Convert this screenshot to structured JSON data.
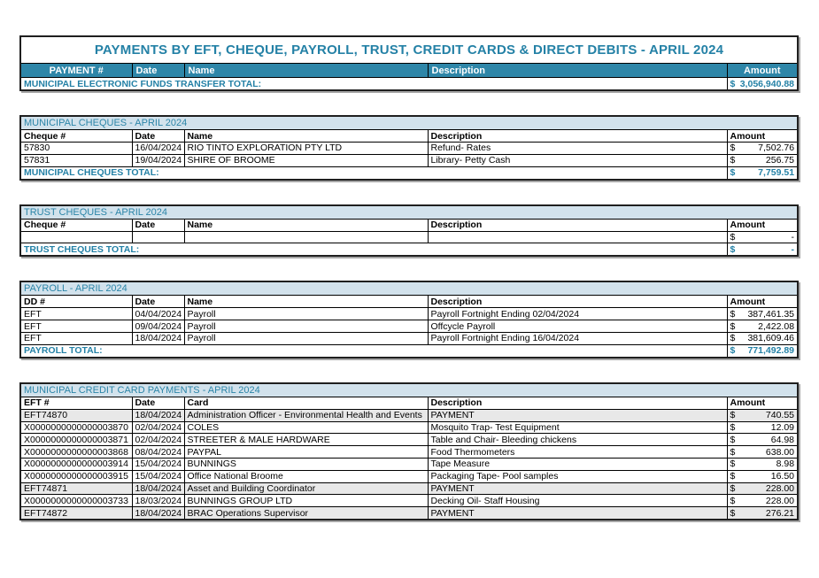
{
  "page_title": "PAYMENTS BY EFT, CHEQUE, PAYROLL, TRUST, CREDIT CARDS & DIRECT DEBITS - APRIL 2024",
  "currency_symbol": "$",
  "colors": {
    "header_teal": "#2E86A8",
    "teal_text": "#2481A6",
    "section_header_bg": "#D2E2EC",
    "highlight_row_bg": "#E8E8E8"
  },
  "summary": {
    "columns": [
      "PAYMENT #",
      "Date",
      "Name",
      "Description",
      "Amount"
    ],
    "total_label": "MUNICIPAL ELECTRONIC FUNDS TRANSFER TOTAL:",
    "total_amount": "3,056,940.88"
  },
  "sections": [
    {
      "title": "MUNICIPAL CHEQUES - APRIL 2024",
      "columns": [
        "Cheque #",
        "Date",
        "Name",
        "Description",
        "Amount"
      ],
      "rows": [
        {
          "id": "57830",
          "date": "16/04/2024",
          "name": "RIO TINTO EXPLORATION PTY LTD",
          "description": "Refund- Rates",
          "amount": "7,502.76",
          "highlight": false
        },
        {
          "id": "57831",
          "date": "19/04/2024",
          "name": "SHIRE OF BROOME",
          "description": "Library- Petty Cash",
          "amount": "256.75",
          "highlight": false
        }
      ],
      "total_label": "MUNICIPAL CHEQUES TOTAL:",
      "total_amount": "7,759.51"
    },
    {
      "title": "TRUST CHEQUES - APRIL 2024",
      "columns": [
        "Cheque #",
        "Date",
        "Name",
        "Description",
        "Amount"
      ],
      "rows": [
        {
          "id": "",
          "date": "",
          "name": "",
          "description": "",
          "amount": "-",
          "highlight": false
        }
      ],
      "total_label": "TRUST CHEQUES TOTAL:",
      "total_amount": "-"
    },
    {
      "title": "PAYROLL - APRIL 2024",
      "columns": [
        "DD #",
        "Date",
        "Name",
        "Description",
        "Amount"
      ],
      "rows": [
        {
          "id": "EFT",
          "date": "04/04/2024",
          "name": "Payroll",
          "description": "Payroll Fortnight Ending 02/04/2024",
          "amount": "387,461.35",
          "highlight": false
        },
        {
          "id": "EFT",
          "date": "09/04/2024",
          "name": "Payroll",
          "description": "Offcycle Payroll",
          "amount": "2,422.08",
          "highlight": false
        },
        {
          "id": "EFT",
          "date": "18/04/2024",
          "name": "Payroll",
          "description": "Payroll Fortnight Ending 16/04/2024",
          "amount": "381,609.46",
          "highlight": false
        }
      ],
      "total_label": "PAYROLL TOTAL:",
      "total_amount": "771,492.89"
    },
    {
      "title": "MUNICIPAL CREDIT CARD PAYMENTS - APRIL 2024",
      "columns": [
        "EFT #",
        "Date",
        "Card",
        "Description",
        "Amount"
      ],
      "rows": [
        {
          "id": "EFT74870",
          "date": "18/04/2024",
          "name": "Administration Officer - Environmental Health and Events",
          "description": "PAYMENT",
          "amount": "740.55",
          "highlight": true
        },
        {
          "id": "X0000000000000003870",
          "date": "02/04/2024",
          "name": "COLES",
          "description": "Mosquito Trap- Test Equipment",
          "amount": "12.09",
          "highlight": false
        },
        {
          "id": "X0000000000000003871",
          "date": "02/04/2024",
          "name": "STREETER & MALE HARDWARE",
          "description": "Table and Chair- Bleeding chickens",
          "amount": "64.98",
          "highlight": false
        },
        {
          "id": "X0000000000000003868",
          "date": "08/04/2024",
          "name": "PAYPAL",
          "description": "Food Thermometers",
          "amount": "638.00",
          "highlight": false
        },
        {
          "id": "X0000000000000003914",
          "date": "15/04/2024",
          "name": "BUNNINGS",
          "description": "Tape Measure",
          "amount": "8.98",
          "highlight": false
        },
        {
          "id": "X0000000000000003915",
          "date": "15/04/2024",
          "name": "Office National Broome",
          "description": "Packaging Tape- Pool samples",
          "amount": "16.50",
          "highlight": false
        },
        {
          "id": "EFT74871",
          "date": "18/04/2024",
          "name": "Asset and Building Coordinator",
          "description": "PAYMENT",
          "amount": "228.00",
          "highlight": true
        },
        {
          "id": "X0000000000000003733",
          "date": "18/03/2024",
          "name": "BUNNINGS GROUP LTD",
          "description": "Decking Oil- Staff Housing",
          "amount": "228.00",
          "highlight": false
        },
        {
          "id": "EFT74872",
          "date": "18/04/2024",
          "name": "BRAC Operations Supervisor",
          "description": "PAYMENT",
          "amount": "276.21",
          "highlight": true
        }
      ],
      "total_label": null,
      "total_amount": null
    }
  ]
}
